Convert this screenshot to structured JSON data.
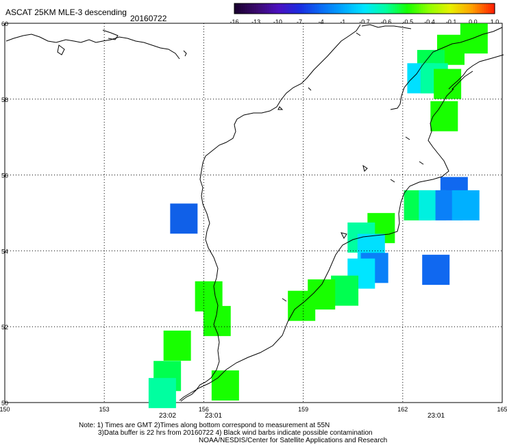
{
  "header": {
    "title": "ASCAT 25KM MLE-3 descending",
    "date": "20160722"
  },
  "colorbar": {
    "labels": [
      "-16",
      "-13",
      "-10",
      "-7",
      "-4",
      "-1",
      "-0.7",
      "-0.6",
      "-0.5",
      "-0.4",
      "-0.1",
      "0.0",
      "1.0"
    ],
    "colors": [
      "#1a0030",
      "#3a0a6e",
      "#4b10c0",
      "#1a2ce0",
      "#0a6cf5",
      "#00a8ff",
      "#00e6ff",
      "#00ffa0",
      "#18ff00",
      "#90ff00",
      "#e8f000",
      "#ffa000",
      "#ff2000"
    ]
  },
  "map": {
    "lat_labels": [
      "60",
      "58",
      "56",
      "54",
      "52",
      "50"
    ],
    "lon_labels": [
      "150",
      "153",
      "156",
      "159",
      "162",
      "165"
    ],
    "time_labels": [
      "23:02",
      "23:01",
      "23:01"
    ],
    "time_color": "#cc2200",
    "cells": [
      {
        "lat": 59.6,
        "lon": 164.15,
        "c": "#18ff00"
      },
      {
        "lat": 59.3,
        "lon": 163.45,
        "c": "#18ff00"
      },
      {
        "lat": 58.9,
        "lon": 162.85,
        "c": "#00ff50"
      },
      {
        "lat": 58.55,
        "lon": 162.55,
        "c": "#00e0ff"
      },
      {
        "lat": 58.55,
        "lon": 162.95,
        "c": "#00ffa0"
      },
      {
        "lat": 58.4,
        "lon": 163.35,
        "c": "#18ff00"
      },
      {
        "lat": 57.55,
        "lon": 163.25,
        "c": "#18ff00"
      },
      {
        "lat": 55.55,
        "lon": 163.55,
        "c": "#1068f0"
      },
      {
        "lat": 55.2,
        "lon": 162.45,
        "c": "#00ff50"
      },
      {
        "lat": 55.2,
        "lon": 162.9,
        "c": "#00f0e0"
      },
      {
        "lat": 55.2,
        "lon": 163.4,
        "c": "#0a80f8"
      },
      {
        "lat": 55.2,
        "lon": 163.9,
        "c": "#00b0ff"
      },
      {
        "lat": 54.85,
        "lon": 155.4,
        "c": "#1060e8"
      },
      {
        "lat": 54.6,
        "lon": 161.35,
        "c": "#18ff00"
      },
      {
        "lat": 54.35,
        "lon": 160.75,
        "c": "#00ffa0"
      },
      {
        "lat": 54.05,
        "lon": 161.05,
        "c": "#00e0ff"
      },
      {
        "lat": 53.55,
        "lon": 161.15,
        "c": "#0a80f8"
      },
      {
        "lat": 53.5,
        "lon": 163.0,
        "c": "#1068f0"
      },
      {
        "lat": 53.4,
        "lon": 160.75,
        "c": "#00e6ff"
      },
      {
        "lat": 52.95,
        "lon": 160.25,
        "c": "#00ff50"
      },
      {
        "lat": 52.85,
        "lon": 159.55,
        "c": "#18ff00"
      },
      {
        "lat": 52.8,
        "lon": 156.15,
        "c": "#18ff00"
      },
      {
        "lat": 52.55,
        "lon": 158.95,
        "c": "#18ff00"
      },
      {
        "lat": 52.15,
        "lon": 156.4,
        "c": "#18ff00"
      },
      {
        "lat": 51.5,
        "lon": 155.2,
        "c": "#18ff00"
      },
      {
        "lat": 50.7,
        "lon": 154.9,
        "c": "#00ff50"
      },
      {
        "lat": 50.45,
        "lon": 156.65,
        "c": "#18ff00"
      },
      {
        "lat": 50.25,
        "lon": 154.75,
        "c": "#00ffa0"
      }
    ]
  },
  "footer": {
    "line1": "Note: 1) Times are GMT 2)Times along bottom correspond to measurement at 55N",
    "line2": "3)Data buffer is 22 hrs from 20160722 4) Black wind barbs indicate possible contamination",
    "line3": "NOAA/NESDIS/Center for Satellite Applications and Research"
  }
}
